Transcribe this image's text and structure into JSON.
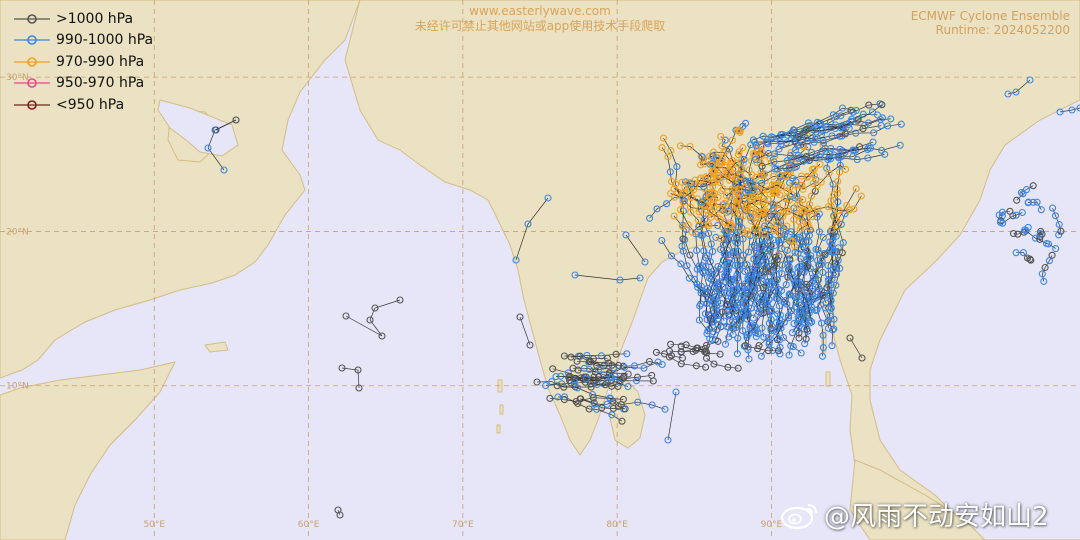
{
  "watermark": {
    "site": "www.easterlywave.com",
    "notice": "未经许可禁止其他网站或app使用技术手段爬取"
  },
  "model_info": {
    "title": "ECMWF Cyclone Ensemble",
    "runtime": "Runtime: 2024052200"
  },
  "legend": [
    {
      "label": ">1000 hPa",
      "color": "#555555"
    },
    {
      "label": "990-1000 hPa",
      "color": "#3a86e6"
    },
    {
      "label": "970-990 hPa",
      "color": "#f0a020"
    },
    {
      "label": "950-970 hPa",
      "color": "#e84a88"
    },
    {
      "label": "<950 hPa",
      "color": "#8b1a1a"
    }
  ],
  "map_extent": {
    "lon": [
      40,
      110
    ],
    "lat": [
      0,
      35
    ]
  },
  "lat_labels": [
    {
      "text": "30°N",
      "lat": 30
    },
    {
      "text": "20°N",
      "lat": 20
    },
    {
      "text": "10°N",
      "lat": 10
    }
  ],
  "lon_labels": [
    {
      "text": "50°E",
      "lon": 50
    },
    {
      "text": "60°E",
      "lon": 60
    },
    {
      "text": "70°E",
      "lon": 70
    },
    {
      "text": "80°E",
      "lon": 80
    },
    {
      "text": "90°E",
      "lon": 90
    }
  ],
  "colors": {
    "ocean": "#e6e6f8",
    "land": "#eae2c2",
    "coast": "#d4bd86",
    "grid": "#c9a070",
    "track_line": "#333333"
  },
  "weibo_watermark": {
    "text": "@风雨不动安如山2",
    "icon": "weibo-logo-icon"
  }
}
